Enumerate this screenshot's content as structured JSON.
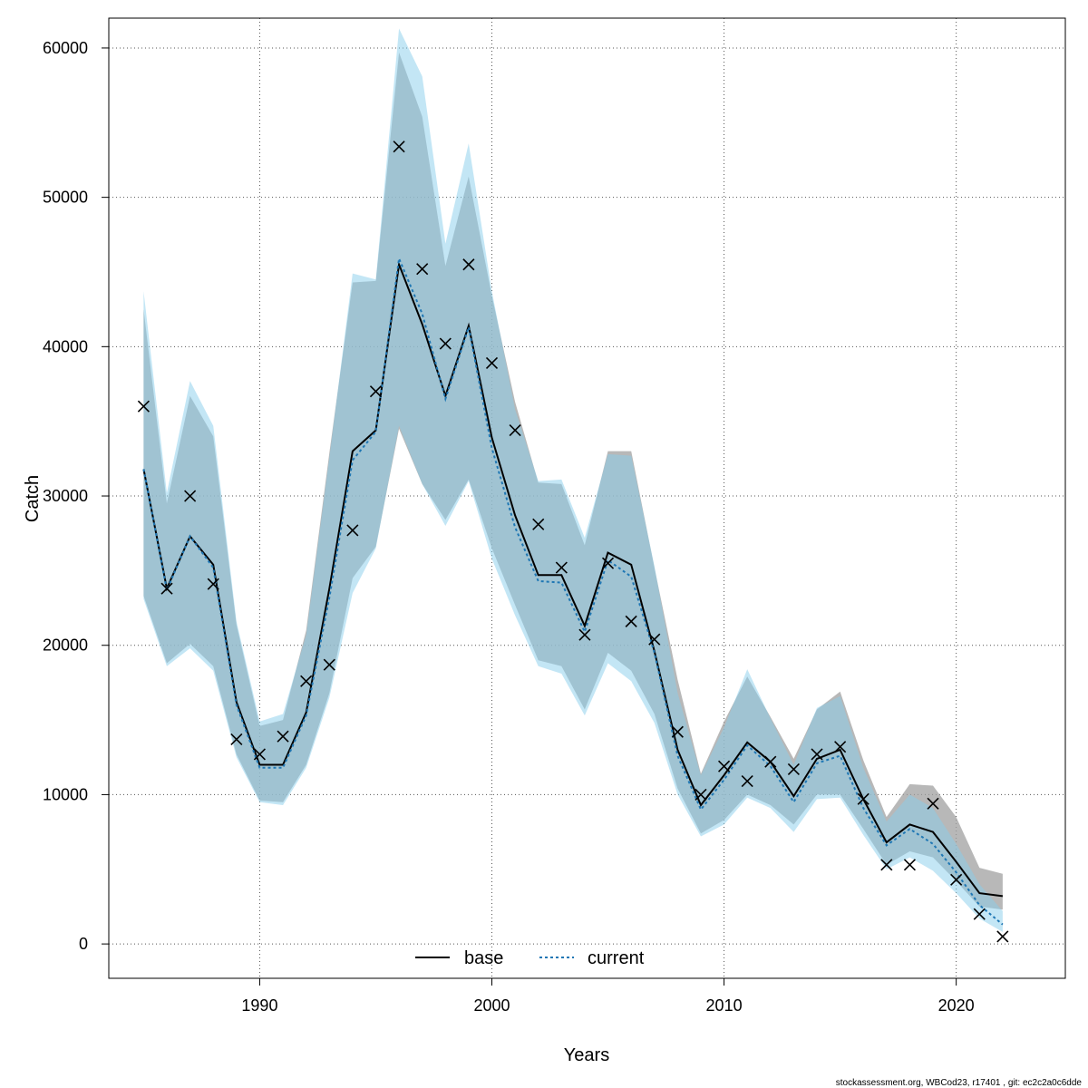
{
  "chart_data": {
    "type": "line",
    "xlabel": "Years",
    "ylabel": "Catch",
    "xlim": [
      1983.5,
      2024.7
    ],
    "ylim": [
      -2300,
      62000
    ],
    "x_ticks": [
      1990,
      2000,
      2010,
      2020
    ],
    "y_ticks": [
      0,
      10000,
      20000,
      30000,
      40000,
      50000,
      60000
    ],
    "grid": true,
    "legend_position": "bottom-center",
    "x": [
      1985,
      1986,
      1987,
      1988,
      1989,
      1990,
      1991,
      1992,
      1993,
      1994,
      1995,
      1996,
      1997,
      1998,
      1999,
      2000,
      2001,
      2002,
      2003,
      2004,
      2005,
      2006,
      2007,
      2008,
      2009,
      2010,
      2011,
      2012,
      2013,
      2014,
      2015,
      2016,
      2017,
      2018,
      2019,
      2020,
      2021,
      2022
    ],
    "series": [
      {
        "name": "base",
        "color": "#000000",
        "line": "solid",
        "band_color": "#a0a0a0",
        "estimate": [
          31800,
          23800,
          27300,
          25400,
          16200,
          12000,
          12000,
          15500,
          23800,
          33000,
          34400,
          45500,
          41500,
          36700,
          41400,
          33900,
          28700,
          24700,
          24700,
          21300,
          26200,
          25400,
          19600,
          13000,
          9300,
          11300,
          13500,
          12200,
          9900,
          12400,
          13000,
          9700,
          6800,
          8000,
          7500,
          5500,
          3400,
          3200
        ],
        "lower": [
          23300,
          18800,
          20100,
          18600,
          12700,
          9600,
          9500,
          12000,
          16800,
          24500,
          26600,
          34500,
          30800,
          28400,
          31100,
          26500,
          22700,
          19000,
          18600,
          15700,
          19500,
          18300,
          15400,
          10400,
          7400,
          8300,
          10000,
          9300,
          8000,
          10000,
          10000,
          7700,
          5300,
          6200,
          5800,
          4200,
          2500,
          2300
        ],
        "upper": [
          42500,
          29500,
          36700,
          34000,
          21400,
          14600,
          15000,
          21000,
          32900,
          44300,
          44400,
          59700,
          55400,
          45400,
          51400,
          43400,
          36300,
          30900,
          30800,
          26700,
          33000,
          33000,
          25200,
          17700,
          11400,
          14900,
          17900,
          15200,
          12400,
          15700,
          16900,
          12300,
          8500,
          10700,
          10600,
          8500,
          5100,
          4700
        ]
      },
      {
        "name": "current",
        "color": "#1f77b4",
        "line": "dotted",
        "band_color": "#87ceeb",
        "estimate": [
          31800,
          23700,
          27300,
          25200,
          16000,
          11800,
          11800,
          15300,
          23200,
          32400,
          34300,
          45900,
          42200,
          36500,
          41300,
          33200,
          27900,
          24300,
          24200,
          20900,
          25700,
          24600,
          19500,
          12600,
          9000,
          11000,
          13300,
          11900,
          9500,
          12100,
          12600,
          9100,
          6600,
          7700,
          6700,
          4800,
          2600,
          1300
        ],
        "lower": [
          23100,
          18600,
          19800,
          18300,
          12500,
          9500,
          9300,
          11800,
          16500,
          23500,
          26500,
          34700,
          30800,
          28000,
          31000,
          25800,
          22000,
          18600,
          18100,
          15300,
          18800,
          17600,
          14800,
          10000,
          7200,
          8000,
          9800,
          9100,
          7500,
          9700,
          9800,
          7300,
          5000,
          5800,
          4900,
          3400,
          1700,
          800
        ],
        "upper": [
          43700,
          30200,
          37700,
          34700,
          21600,
          14900,
          15400,
          20700,
          32600,
          44900,
          44500,
          61300,
          58100,
          46900,
          53600,
          43700,
          35800,
          31000,
          31100,
          27200,
          32800,
          32700,
          25300,
          16800,
          11300,
          14500,
          18400,
          15100,
          12000,
          15800,
          16600,
          11800,
          8200,
          10000,
          9100,
          6700,
          4000,
          2200
        ]
      }
    ],
    "observed": {
      "marker": "x",
      "values": [
        36000,
        23800,
        30000,
        24100,
        13700,
        12700,
        13900,
        17600,
        18700,
        27700,
        37000,
        53400,
        45200,
        40200,
        45500,
        38900,
        34400,
        28100,
        25200,
        20700,
        25500,
        21600,
        20400,
        14200,
        10000,
        11900,
        10900,
        12200,
        11700,
        12700,
        13200,
        9700,
        5300,
        5300,
        9400,
        4300,
        2000,
        500
      ]
    }
  },
  "footer": "stockassessment.org, WBCod23, r17401 , git: ec2c2a0c6dde"
}
